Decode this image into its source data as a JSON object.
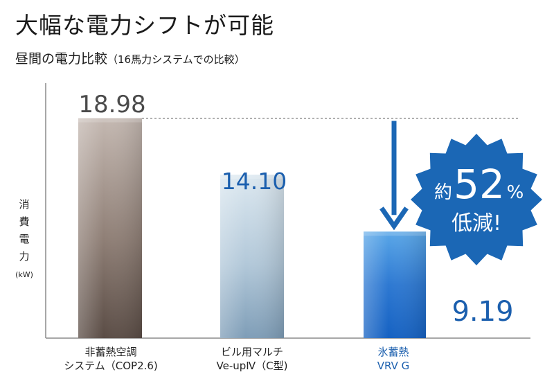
{
  "headline": "大幅な電力シフトが可能",
  "subhead": "昼間の電力比較",
  "subhead_note": "（16馬力システムでの比較）",
  "ylabel_chars": [
    "消",
    "費",
    "電",
    "力"
  ],
  "ylabel_unit": "(kW)",
  "badge": {
    "line1": "約",
    "value": "52",
    "unit": "%",
    "line2": "低減!"
  },
  "chart_data": {
    "type": "bar",
    "categories": [
      {
        "line1": "非蓄熱空調",
        "line2": "システム（COP2.6)"
      },
      {
        "line1": "ビル用マルチ",
        "line2": "Ve-upⅣ（C型)"
      },
      {
        "line1": "氷蓄熱",
        "line2": "VRV G"
      }
    ],
    "values": [
      18.98,
      14.1,
      9.19
    ],
    "value_labels": [
      "18.98",
      "14.10",
      "9.19"
    ],
    "ylabel": "消費電力 (kW)",
    "ylim": [
      0,
      22
    ],
    "highlight_index": 2,
    "colors": {
      "bar1": [
        "#c4b8b1",
        "#8f7f76",
        "#5a4c45"
      ],
      "bar2": [
        "#dce8f0",
        "#b2c8d9",
        "#7e9db7"
      ],
      "bar3": [
        "#5aa7e8",
        "#2e79d2",
        "#1561c2"
      ],
      "label_dark": "#4a4a4a",
      "label_blue": "#1b5fae",
      "badge": "#1b67b5"
    }
  }
}
